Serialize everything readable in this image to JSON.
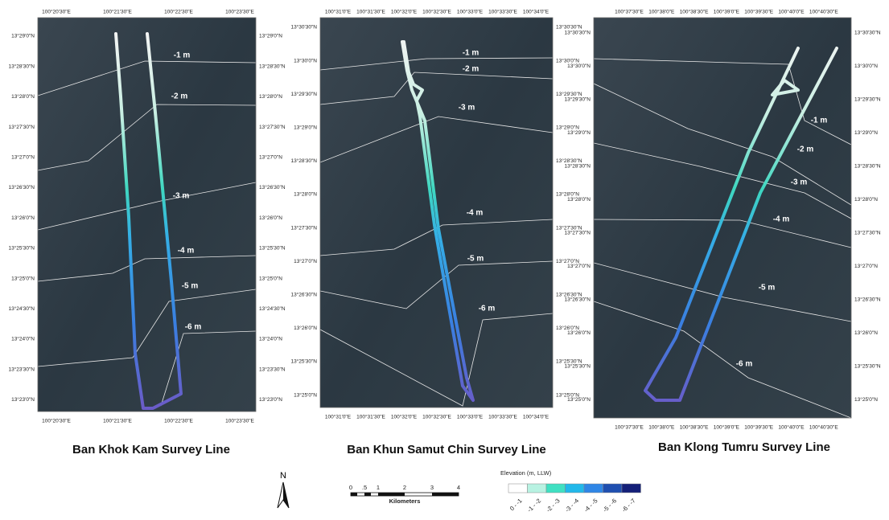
{
  "panels": [
    {
      "title": "Ban Khok Kam Survey Line",
      "lon_labels": [
        "100°20'30\"E",
        "100°21'30\"E",
        "100°22'30\"E",
        "100°23'30\"E"
      ],
      "lat_labels": [
        "13°29'0\"N",
        "13°28'30\"N",
        "13°28'0\"N",
        "13°27'30\"N",
        "13°27'0\"N",
        "13°26'30\"N",
        "13°26'0\"N",
        "13°25'30\"N",
        "13°25'0\"N",
        "13°24'30\"N",
        "13°24'0\"N",
        "13°23'30\"N",
        "13°23'0\"N"
      ],
      "contours": [
        "-1 m",
        "-2 m",
        "-3 m",
        "-4 m",
        "-5 m",
        "-6 m"
      ]
    },
    {
      "title": "Ban Khun Samut Chin Survey Line",
      "lon_labels": [
        "100°31'0\"E",
        "100°31'30\"E",
        "100°32'0\"E",
        "100°32'30\"E",
        "100°33'0\"E",
        "100°33'30\"E",
        "100°34'0\"E"
      ],
      "lat_labels": [
        "13°30'30\"N",
        "13°30'0\"N",
        "13°29'30\"N",
        "13°29'0\"N",
        "13°28'30\"N",
        "13°28'0\"N",
        "13°27'30\"N",
        "13°27'0\"N",
        "13°26'30\"N",
        "13°26'0\"N",
        "13°25'30\"N",
        "13°25'0\"N"
      ],
      "contours": [
        "-1 m",
        "-2 m",
        "-3 m",
        "-4 m",
        "-5 m",
        "-6 m"
      ]
    },
    {
      "title": "Ban Klong Tumru Survey Line",
      "lon_labels": [
        "100°37'30\"E",
        "100°38'0\"E",
        "100°38'30\"E",
        "100°39'0\"E",
        "100°39'30\"E",
        "100°40'0\"E",
        "100°40'30\"E"
      ],
      "lat_labels": [
        "13°30'30\"N",
        "13°30'0\"N",
        "13°29'30\"N",
        "13°29'0\"N",
        "13°28'30\"N",
        "13°28'0\"N",
        "13°27'30\"N",
        "13°27'0\"N",
        "13°26'30\"N",
        "13°26'0\"N",
        "13°25'30\"N",
        "13°25'0\"N"
      ],
      "contours": [
        "-1 m",
        "-2 m",
        "-3 m",
        "-4 m",
        "-5 m",
        "-6 m"
      ]
    }
  ],
  "north": "N",
  "scale_bar": {
    "labels": [
      "0",
      ".5",
      "1",
      "2",
      "3",
      "4"
    ],
    "unit": "Kilometers"
  },
  "legend": {
    "title": "Elevation (m, LLW)",
    "classes": [
      "0 - -1",
      "-1 - -2",
      "-2 - -3",
      "-3 - -4",
      "-4 - -5",
      "-5 - -6",
      "-6 - -7"
    ],
    "colors": [
      "#ffffff",
      "#b8f2e2",
      "#3fe0c2",
      "#22b8ea",
      "#2f86e6",
      "#1f4fb0",
      "#141f78"
    ]
  }
}
